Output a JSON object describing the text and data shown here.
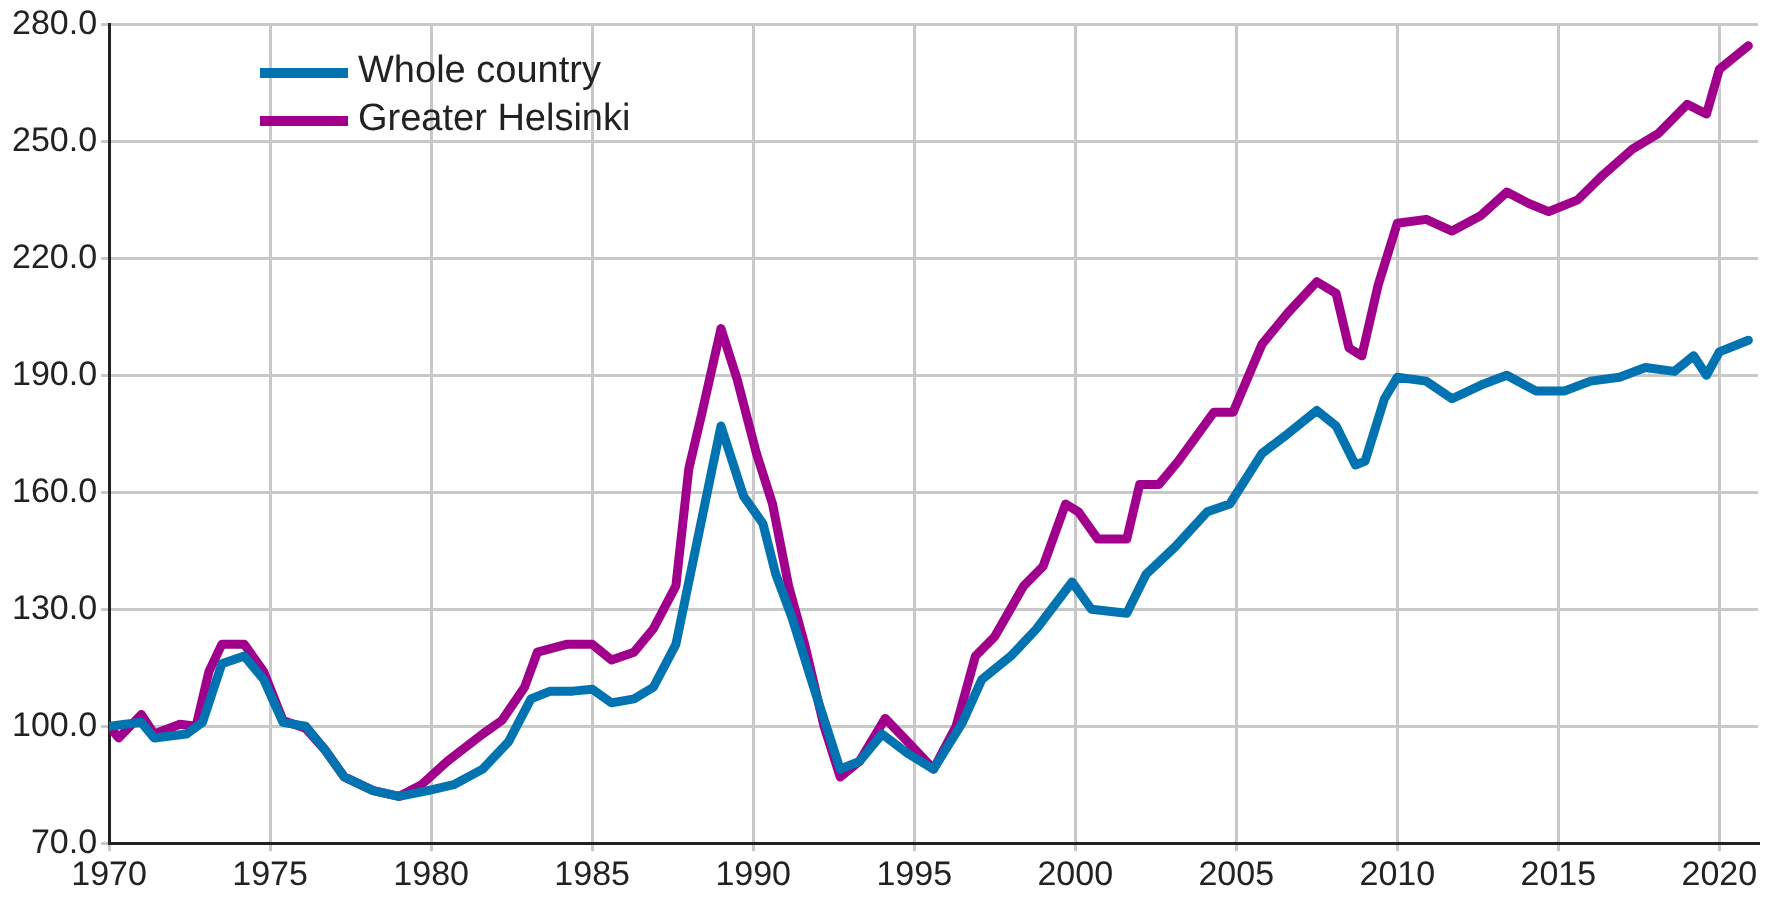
{
  "chart_data": {
    "type": "line",
    "xlim": [
      1970,
      2021.2
    ],
    "xticks": [
      1970,
      1975,
      1980,
      1985,
      1990,
      1995,
      2000,
      2005,
      2010,
      2015,
      2020
    ],
    "ylim": [
      70,
      280
    ],
    "yticks": [
      {
        "value": 70,
        "label": "70.0"
      },
      {
        "value": 100,
        "label": "100.0"
      },
      {
        "value": 130,
        "label": "130.0"
      },
      {
        "value": 160,
        "label": "160.0"
      },
      {
        "value": 190,
        "label": "190.0"
      },
      {
        "value": 220,
        "label": "220.0"
      },
      {
        "value": 250,
        "label": "250.0"
      },
      {
        "value": 280,
        "label": "280.0"
      }
    ],
    "grid": true,
    "legend": "top left",
    "marker": "none",
    "line_style": "solid",
    "series": [
      {
        "name": "Whole country",
        "color": "#0073b0",
        "x": [
          1970.0,
          1971.0,
          1971.4,
          1972.4,
          1972.9,
          1973.5,
          1974.2,
          1974.8,
          1975.4,
          1976.1,
          1976.7,
          1977.3,
          1978.2,
          1979.0,
          1979.9,
          1980.7,
          1981.6,
          1982.4,
          1983.1,
          1983.7,
          1984.4,
          1985.0,
          1985.6,
          1986.3,
          1986.9,
          1987.6,
          1988.0,
          1988.6,
          1989.0,
          1989.7,
          1990.3,
          1990.7,
          1991.2,
          1991.8,
          1992.7,
          1993.3,
          1994.0,
          1994.8,
          1995.6,
          1996.5,
          1997.1,
          1998.0,
          1998.8,
          1999.9,
          2000.5,
          2001.6,
          2002.2,
          2003.1,
          2004.1,
          2004.8,
          2005.8,
          2006.6,
          2007.5,
          2008.1,
          2008.7,
          2009.0,
          2009.6,
          2010.0,
          2010.9,
          2011.7,
          2012.6,
          2013.4,
          2014.3,
          2015.2,
          2016.0,
          2016.9,
          2017.7,
          2018.6,
          2019.2,
          2019.6,
          2020.0,
          2020.9
        ],
        "values": [
          100,
          101,
          97,
          98,
          101,
          116,
          118,
          112,
          101,
          100,
          94,
          87,
          83.5,
          82,
          83.5,
          85,
          89,
          96,
          107,
          109,
          109,
          109.5,
          106,
          107,
          110,
          121,
          137,
          161,
          177,
          159,
          152,
          139,
          128,
          112,
          89,
          91,
          98,
          93,
          89,
          101,
          112,
          118,
          125,
          137,
          130,
          129,
          139,
          146,
          155,
          157,
          170,
          175,
          181,
          177,
          167,
          168,
          184,
          189.5,
          188.5,
          184,
          187.5,
          190,
          186,
          186,
          188.5,
          189.5,
          192,
          191,
          195,
          190,
          196,
          199
        ]
      },
      {
        "name": "Greater Helsinki",
        "color": "#a0008c",
        "x": [
          1970.0,
          1970.3,
          1971.0,
          1971.4,
          1972.2,
          1972.7,
          1973.1,
          1973.5,
          1974.2,
          1974.8,
          1975.4,
          1976.1,
          1976.7,
          1977.3,
          1978.2,
          1979.0,
          1979.7,
          1980.5,
          1981.6,
          1982.2,
          1982.9,
          1983.3,
          1984.2,
          1985.0,
          1985.6,
          1986.3,
          1986.9,
          1987.6,
          1988.0,
          1988.4,
          1989.0,
          1989.5,
          1990.1,
          1990.6,
          1991.1,
          1991.6,
          1992.2,
          1992.7,
          1993.3,
          1994.1,
          1994.8,
          1995.6,
          1996.3,
          1996.9,
          1997.5,
          1998.4,
          1999.0,
          1999.7,
          2000.1,
          2000.7,
          2001.6,
          2002.0,
          2002.6,
          2003.2,
          2004.3,
          2004.9,
          2005.8,
          2006.6,
          2007.5,
          2008.1,
          2008.5,
          2008.9,
          2009.4,
          2010.0,
          2010.9,
          2011.7,
          2012.6,
          2013.4,
          2014.1,
          2014.7,
          2015.6,
          2016.4,
          2017.3,
          2018.1,
          2019.0,
          2019.6,
          2020.0,
          2020.9
        ],
        "values": [
          100,
          97,
          103,
          98,
          100.5,
          100,
          114,
          121,
          121,
          114,
          101.5,
          99.5,
          94,
          87,
          83.5,
          82,
          85,
          91,
          98,
          101.5,
          110,
          119,
          121,
          121,
          117,
          119,
          125,
          136,
          166,
          180,
          202,
          189,
          170,
          157,
          136,
          121,
          100,
          87,
          91,
          102,
          96,
          89,
          100,
          118,
          123,
          136,
          141,
          157,
          155,
          148,
          148,
          162,
          162,
          168,
          180.5,
          180.5,
          198,
          206,
          214,
          211,
          197,
          195,
          213,
          229,
          230,
          227,
          231,
          237,
          234,
          232,
          235,
          241.5,
          248,
          252,
          259.5,
          257,
          268.5,
          274.5
        ]
      }
    ]
  }
}
